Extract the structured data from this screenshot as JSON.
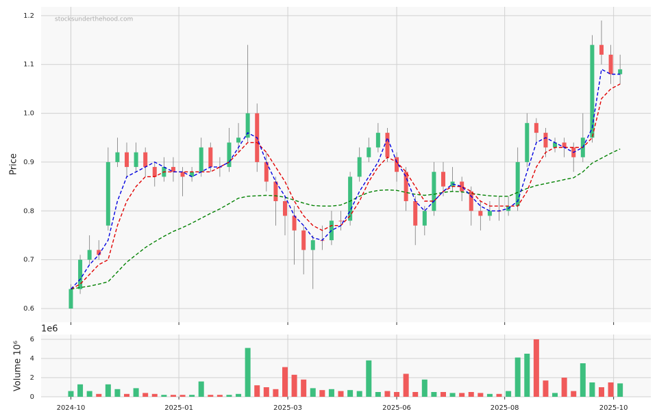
{
  "chart_data": [
    {
      "type": "candlestick",
      "ylabel": "Price",
      "watermark": "stocksunderthehood.com",
      "up_color": "#3dbf7f",
      "down_color": "#f05a5a",
      "grid": true,
      "ylim": [
        0.572,
        1.218
      ],
      "yticks": [
        0.6,
        0.7,
        0.8,
        0.9,
        {
          "value": 1,
          "label": "1.0"
        },
        1.1,
        1.2
      ],
      "open": [
        0.6,
        0.64,
        0.7,
        0.72,
        0.77,
        0.9,
        0.92,
        0.89,
        0.92,
        0.89,
        0.87,
        0.89,
        0.88,
        0.87,
        0.88,
        0.93,
        0.89,
        0.89,
        0.94,
        0.95,
        1.0,
        0.9,
        0.86,
        0.82,
        0.79,
        0.76,
        0.72,
        0.74,
        0.74,
        0.78,
        0.78,
        0.87,
        0.91,
        0.93,
        0.96,
        0.91,
        0.88,
        0.82,
        0.77,
        0.8,
        0.88,
        0.85,
        0.86,
        0.84,
        0.8,
        0.79,
        0.8,
        0.8,
        0.81,
        0.9,
        0.98,
        0.96,
        0.93,
        0.94,
        0.93,
        0.91,
        0.95,
        1.14,
        1.12,
        1.08
      ],
      "high": [
        0.65,
        0.71,
        0.75,
        0.74,
        0.93,
        0.95,
        0.94,
        0.94,
        0.93,
        0.9,
        0.91,
        0.91,
        0.89,
        0.89,
        0.95,
        0.94,
        0.91,
        0.97,
        0.98,
        1.14,
        1.02,
        0.92,
        0.87,
        0.83,
        0.81,
        0.77,
        0.75,
        0.77,
        0.8,
        0.8,
        0.88,
        0.93,
        0.95,
        0.98,
        0.97,
        0.92,
        0.89,
        0.83,
        0.81,
        0.9,
        0.9,
        0.89,
        0.87,
        0.85,
        0.82,
        0.82,
        0.83,
        0.83,
        0.93,
        1.0,
        0.99,
        0.97,
        0.95,
        0.95,
        0.94,
        1.0,
        1.16,
        1.19,
        1.14,
        1.12
      ],
      "low": [
        0.6,
        0.63,
        0.69,
        0.7,
        0.76,
        0.89,
        0.87,
        0.88,
        0.87,
        0.85,
        0.86,
        0.86,
        0.83,
        0.86,
        0.87,
        0.88,
        0.87,
        0.88,
        0.92,
        0.94,
        0.88,
        0.84,
        0.77,
        0.75,
        0.69,
        0.67,
        0.64,
        0.72,
        0.73,
        0.76,
        0.77,
        0.86,
        0.9,
        0.92,
        0.9,
        0.86,
        0.8,
        0.73,
        0.75,
        0.79,
        0.83,
        0.84,
        0.82,
        0.77,
        0.76,
        0.78,
        0.78,
        0.79,
        0.8,
        0.89,
        0.94,
        0.91,
        0.92,
        0.91,
        0.88,
        0.9,
        0.94,
        1.1,
        1.06,
        1.06
      ],
      "close": [
        0.64,
        0.7,
        0.72,
        0.71,
        0.9,
        0.92,
        0.89,
        0.92,
        0.89,
        0.87,
        0.89,
        0.88,
        0.87,
        0.88,
        0.93,
        0.89,
        0.89,
        0.94,
        0.95,
        1.0,
        0.9,
        0.86,
        0.82,
        0.79,
        0.76,
        0.72,
        0.74,
        0.74,
        0.78,
        0.78,
        0.87,
        0.91,
        0.93,
        0.96,
        0.91,
        0.88,
        0.82,
        0.77,
        0.8,
        0.88,
        0.85,
        0.86,
        0.84,
        0.8,
        0.79,
        0.8,
        0.8,
        0.81,
        0.9,
        0.98,
        0.96,
        0.93,
        0.94,
        0.93,
        0.91,
        0.95,
        1.14,
        1.12,
        1.08,
        1.09
      ],
      "series": [
        {
          "color": "#008000",
          "values": [
            0.64,
            0.643,
            0.646,
            0.65,
            0.655,
            0.675,
            0.695,
            0.71,
            0.725,
            0.737,
            0.748,
            0.758,
            0.766,
            0.775,
            0.785,
            0.795,
            0.804,
            0.815,
            0.826,
            0.83,
            0.831,
            0.832,
            0.831,
            0.828,
            0.822,
            0.816,
            0.811,
            0.81,
            0.81,
            0.812,
            0.82,
            0.83,
            0.838,
            0.842,
            0.843,
            0.842,
            0.838,
            0.834,
            0.832,
            0.834,
            0.838,
            0.84,
            0.839,
            0.836,
            0.833,
            0.831,
            0.83,
            0.83,
            0.838,
            0.846,
            0.852,
            0.856,
            0.86,
            0.864,
            0.868,
            0.88,
            0.898,
            0.908,
            0.918,
            0.927
          ]
        },
        {
          "color": "#e00000",
          "values": [
            0.64,
            0.65,
            0.67,
            0.69,
            0.7,
            0.77,
            0.82,
            0.85,
            0.87,
            0.87,
            0.88,
            0.88,
            0.88,
            0.88,
            0.88,
            0.88,
            0.89,
            0.9,
            0.92,
            0.94,
            0.94,
            0.92,
            0.89,
            0.86,
            0.82,
            0.79,
            0.77,
            0.76,
            0.77,
            0.77,
            0.79,
            0.82,
            0.86,
            0.89,
            0.91,
            0.9,
            0.88,
            0.85,
            0.82,
            0.82,
            0.84,
            0.85,
            0.85,
            0.84,
            0.82,
            0.81,
            0.81,
            0.81,
            0.81,
            0.84,
            0.89,
            0.92,
            0.93,
            0.93,
            0.93,
            0.93,
            0.95,
            1.03,
            1.05,
            1.06
          ]
        },
        {
          "color": "#0000e0",
          "values": [
            0.64,
            0.66,
            0.69,
            0.71,
            0.74,
            0.82,
            0.87,
            0.88,
            0.89,
            0.9,
            0.89,
            0.88,
            0.88,
            0.87,
            0.88,
            0.89,
            0.89,
            0.9,
            0.93,
            0.96,
            0.95,
            0.9,
            0.86,
            0.83,
            0.79,
            0.77,
            0.745,
            0.74,
            0.76,
            0.77,
            0.8,
            0.84,
            0.87,
            0.9,
            0.95,
            0.9,
            0.87,
            0.82,
            0.8,
            0.82,
            0.84,
            0.855,
            0.85,
            0.83,
            0.81,
            0.8,
            0.8,
            0.805,
            0.82,
            0.88,
            0.94,
            0.95,
            0.94,
            0.93,
            0.92,
            0.93,
            0.97,
            1.09,
            1.08,
            1.08
          ]
        }
      ]
    },
    {
      "type": "bar",
      "ylabel": "Volume  10⁶",
      "offset_label": "1e6",
      "grid": true,
      "ylim": [
        0,
        6.5
      ],
      "yticks": [
        0,
        2,
        4,
        6
      ],
      "xlim": [
        -3.2,
        62.3
      ],
      "xticks": [
        {
          "value": 0,
          "label": "2024-10"
        },
        {
          "value": 11.6,
          "label": "2025-01"
        },
        {
          "value": 23.3,
          "label": "2025-03"
        },
        {
          "value": 35,
          "label": "2025-06"
        },
        {
          "value": 46.6,
          "label": "2025-08"
        },
        {
          "value": 58.3,
          "label": "2025-10"
        }
      ],
      "values": [
        0.6,
        1.3,
        0.6,
        0.3,
        1.3,
        0.8,
        0.3,
        0.9,
        0.4,
        0.3,
        0.2,
        0.2,
        0.2,
        0.2,
        1.6,
        0.2,
        0.2,
        0.2,
        0.3,
        5.1,
        1.2,
        1.0,
        0.8,
        3.1,
        2.3,
        1.8,
        0.9,
        0.7,
        0.8,
        0.6,
        0.7,
        0.6,
        3.8,
        0.5,
        0.6,
        0.5,
        2.4,
        0.5,
        1.8,
        0.5,
        0.5,
        0.4,
        0.4,
        0.5,
        0.4,
        0.3,
        0.3,
        0.6,
        4.1,
        4.5,
        6.0,
        1.7,
        0.4,
        2.0,
        0.6,
        3.5,
        1.5,
        1.0,
        1.5,
        1.4
      ]
    }
  ]
}
